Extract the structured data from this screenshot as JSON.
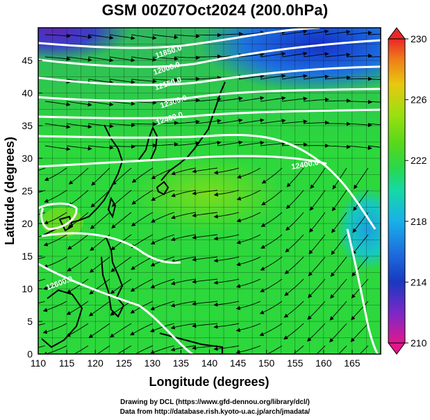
{
  "title": "GSM 00Z07Oct2024 (200.0hPa)",
  "x_axis": {
    "label": "Longitude (degrees)",
    "range": [
      110,
      170
    ],
    "ticks": [
      110,
      115,
      120,
      125,
      130,
      135,
      140,
      145,
      150,
      155,
      160,
      165
    ]
  },
  "y_axis": {
    "label": "Latitude  (degrees)",
    "range": [
      0,
      50
    ],
    "ticks": [
      0,
      5,
      10,
      15,
      20,
      25,
      30,
      35,
      40,
      45
    ]
  },
  "colorbar": {
    "min": 210,
    "max": 230,
    "tick_labels": [
      "230",
      "226",
      "222",
      "218",
      "214",
      "210"
    ],
    "colors": [
      "#e0188c",
      "#7a28c8",
      "#1a38c0",
      "#1c70e0",
      "#19b0e8",
      "#15d8a8",
      "#2ad848",
      "#5ad818",
      "#9ae010",
      "#e8c810",
      "#f08018",
      "#e82828"
    ]
  },
  "contours": {
    "color": "#ffffff",
    "visible_labels": [
      "11850.0",
      "12000.0",
      "12150.0",
      "12300.0",
      "12450.0",
      "12600.0"
    ],
    "drawn_labels": [
      "11850.0",
      "12000.0",
      "12150.0",
      "12300.0",
      "12400.0",
      "12400.0",
      "12600.0"
    ]
  },
  "credits": {
    "line1": "Drawing by DCL (https://www.gfd-dennou.org/library/dcl/)",
    "line2": "Data from http://database.rish.kyoto-u.ac.jp/arch/jmadata/"
  }
}
